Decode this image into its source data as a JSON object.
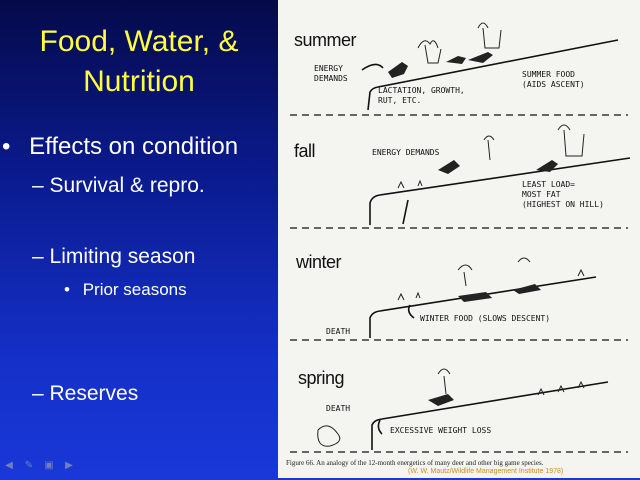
{
  "slide": {
    "title_line1": "Food, Water, &",
    "title_line2": "Nutrition",
    "bullets": {
      "main": "Effects on condition",
      "survival": "– Survival & repro.",
      "limiting": "– Limiting season",
      "prior": "Prior seasons",
      "reserves": "– Reserves"
    },
    "bullet_glyph": "•",
    "colors": {
      "title": "#ffff3c",
      "text": "#ffffff",
      "background": "#1530c8"
    }
  },
  "figure": {
    "seasons": {
      "summer": "summer",
      "fall": "fall",
      "winter": "winter",
      "spring": "spring"
    },
    "labels": {
      "energy_demands_1": "ENERGY\nDEMANDS",
      "lactation": "LACTATION, GROWTH,\nRUT, ETC.",
      "summer_food": "SUMMER FOOD\n(AIDS ASCENT)",
      "energy_demands_2": "ENERGY DEMANDS",
      "least_load": "LEAST LOAD=\nMOST FAT\n(HIGHEST ON HILL)",
      "death_winter": "DEATH",
      "winter_food": "WINTER FOOD (SLOWS DESCENT)",
      "death_spring": "DEATH",
      "weight_loss": "EXCESSIVE WEIGHT LOSS"
    },
    "caption": "Figure 66.  An analogy of the 12-month energetics of many deer and other big game species.",
    "credit": "(W. W. Mautz/Wildlife Management Institute 1978)"
  },
  "navigation": {
    "icons": [
      "arrow-left-icon",
      "pen-icon",
      "monitor-icon",
      "arrow-right-icon"
    ]
  }
}
